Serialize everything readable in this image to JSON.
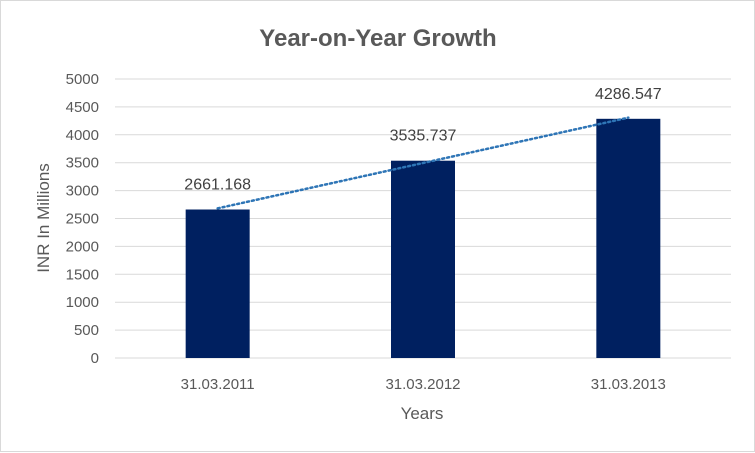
{
  "chart_data": {
    "type": "bar",
    "title": "Year-on-Year Growth",
    "xlabel": "Years",
    "ylabel": "INR In Millions",
    "categories": [
      "31.03.2011",
      "31.03.2012",
      "31.03.2013"
    ],
    "values": [
      2661.168,
      3535.737,
      4286.547
    ],
    "data_labels": [
      "2661.168",
      "3535.737",
      "4286.547"
    ],
    "ylim": [
      0,
      5000
    ],
    "yticks": [
      0,
      500,
      1000,
      1500,
      2000,
      2500,
      3000,
      3500,
      4000,
      4500,
      5000
    ],
    "grid": true,
    "legend": "none",
    "trendline": "linear",
    "colors": {
      "bar": "#002060",
      "trendline": "#2e75b6",
      "grid": "#d9d9d9",
      "text": "#595959",
      "data_label": "#404040"
    }
  }
}
